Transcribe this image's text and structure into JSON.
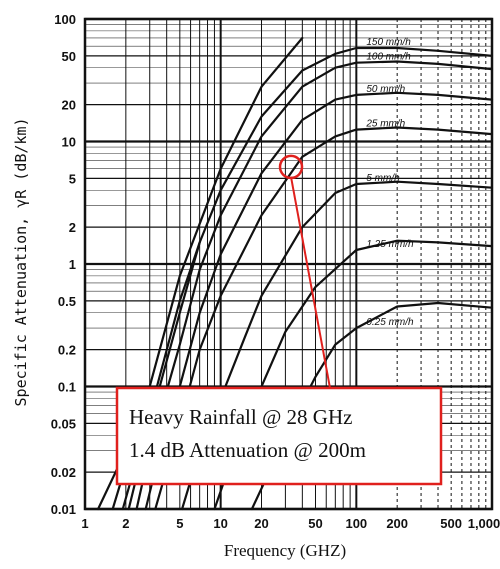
{
  "chart_data": {
    "type": "line",
    "title": "",
    "xlabel": "Frequency (GHZ)",
    "ylabel": "Specific Attenuation,  γR  (dB/km)",
    "x_scale": "log",
    "y_scale": "log",
    "xlim": [
      1,
      1000
    ],
    "ylim": [
      0.01,
      100
    ],
    "x_ticks": [
      1,
      2,
      5,
      10,
      20,
      50,
      100,
      200,
      500,
      1000
    ],
    "x_tick_labels": [
      "1",
      "2",
      "5",
      "10",
      "20",
      "50",
      "100",
      "200",
      "500",
      "1,000"
    ],
    "y_ticks": [
      0.01,
      0.02,
      0.05,
      0.1,
      0.2,
      0.5,
      1,
      2,
      5,
      10,
      20,
      50,
      100
    ],
    "y_tick_labels": [
      "0.01",
      "0.02",
      "0.05",
      "0.1",
      "0.2",
      "0.5",
      "1",
      "2",
      "5",
      "10",
      "20",
      "50",
      "100"
    ],
    "grid": true,
    "series": [
      {
        "name": "150 mm/h",
        "x": [
          2.1,
          3,
          5,
          7,
          10,
          20,
          40,
          70,
          100,
          200,
          400,
          1000
        ],
        "y": [
          0.01,
          0.05,
          0.4,
          1.5,
          4,
          16,
          38,
          52,
          58,
          58,
          55,
          50
        ]
      },
      {
        "name": "100 mm/h",
        "x": [
          2.4,
          3,
          5,
          7,
          10,
          20,
          40,
          70,
          100,
          200,
          400,
          1000
        ],
        "y": [
          0.01,
          0.03,
          0.22,
          0.9,
          2.5,
          11,
          28,
          40,
          44,
          45,
          43,
          39
        ]
      },
      {
        "name": "50 mm/h",
        "x": [
          2.8,
          4,
          5,
          7,
          10,
          20,
          40,
          70,
          100,
          200,
          400,
          1000
        ],
        "y": [
          0.01,
          0.05,
          0.1,
          0.4,
          1.2,
          5.5,
          15,
          22,
          24,
          25,
          24,
          22
        ]
      },
      {
        "name": "25 mm/h",
        "x": [
          3.3,
          5,
          7,
          10,
          20,
          40,
          70,
          100,
          200,
          400,
          1000
        ],
        "y": [
          0.01,
          0.05,
          0.2,
          0.55,
          2.5,
          7.5,
          11,
          12.5,
          13,
          12.5,
          11.5
        ]
      },
      {
        "name": "5 mm/h",
        "x": [
          5.2,
          7,
          10,
          15,
          20,
          40,
          70,
          100,
          200,
          400,
          1000
        ],
        "y": [
          0.01,
          0.03,
          0.08,
          0.25,
          0.55,
          2,
          3.8,
          4.5,
          4.7,
          4.5,
          4.2
        ]
      },
      {
        "name": "1.25 mm/h",
        "x": [
          9,
          12,
          15,
          20,
          30,
          50,
          100,
          200,
          400,
          1000
        ],
        "y": [
          0.01,
          0.025,
          0.05,
          0.1,
          0.28,
          0.65,
          1.3,
          1.55,
          1.5,
          1.4
        ]
      },
      {
        "name": "0.25 mm/h",
        "x": [
          17,
          25,
          30,
          50,
          70,
          100,
          200,
          400,
          1000
        ],
        "y": [
          0.01,
          0.025,
          0.04,
          0.12,
          0.22,
          0.3,
          0.45,
          0.48,
          0.44
        ]
      }
    ],
    "extra_curves": [
      {
        "x": [
          1.25,
          2,
          3
        ],
        "y": [
          0.01,
          0.03,
          0.08
        ]
      },
      {
        "x": [
          1.6,
          3,
          5,
          10,
          20,
          40
        ],
        "y": [
          0.01,
          0.1,
          0.8,
          6,
          28,
          70
        ]
      },
      {
        "x": [
          1.9,
          3,
          5,
          7
        ],
        "y": [
          0.01,
          0.06,
          0.5,
          1.5
        ]
      }
    ],
    "callout": {
      "target_x": 33,
      "target_y": 6.2,
      "lines": [
        "Heavy Rainfall @ 28 GHz",
        "1.4 dB Attenuation @ 200m"
      ],
      "color": "#e0201d"
    }
  }
}
